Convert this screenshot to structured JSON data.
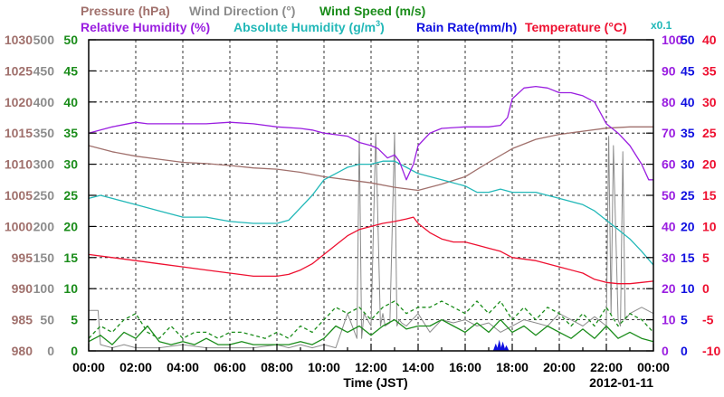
{
  "chart_data": {
    "type": "line",
    "title": "",
    "date": "2012-01-11",
    "xlabel": "Time (JST)",
    "x_ticks": [
      "00:00",
      "02:00",
      "04:00",
      "06:00",
      "08:00",
      "10:00",
      "12:00",
      "14:00",
      "16:00",
      "18:00",
      "20:00",
      "22:00",
      "00:00"
    ],
    "x_range_hours": [
      0,
      24
    ],
    "grid": true,
    "axes": [
      {
        "label": "Pressure (hPa)",
        "color": "#a0706c",
        "side": "left",
        "range": [
          980,
          1030
        ],
        "ticks": [
          "1030",
          "1025",
          "1020",
          "1015",
          "1010",
          "1005",
          "1000",
          "995",
          "990",
          "985",
          "980"
        ]
      },
      {
        "label": "Wind Direction (°)",
        "color": "#8c8c8c",
        "side": "left",
        "range": [
          0,
          500
        ],
        "ticks": [
          "500",
          "450",
          "400",
          "350",
          "300",
          "250",
          "200",
          "150",
          "100",
          "50",
          "0"
        ]
      },
      {
        "label": "Wind Speed (m/s)",
        "color": "#1a8c1a",
        "side": "left",
        "range": [
          0,
          50
        ],
        "ticks": [
          "50",
          "45",
          "40",
          "35",
          "30",
          "25",
          "20",
          "15",
          "10",
          "5",
          "0"
        ]
      },
      {
        "label": "Relative Humidity (%)",
        "color": "#9a1ee0",
        "side": "right",
        "range": [
          0,
          100
        ],
        "ticks": [
          "100",
          "90",
          "80",
          "70",
          "60",
          "50",
          "40",
          "30",
          "20",
          "10",
          "0"
        ]
      },
      {
        "label": "Absolute Humidity (g/m³) x0.1",
        "color": "#22b8b8",
        "side": "right",
        "range": [
          0,
          50
        ],
        "ticks": []
      },
      {
        "label": "Rain Rate(mm/h)",
        "color": "#1010e0",
        "side": "right",
        "range": [
          0,
          50
        ],
        "ticks": [
          "50",
          "45",
          "40",
          "35",
          "30",
          "25",
          "20",
          "15",
          "10",
          "5",
          "0"
        ]
      },
      {
        "label": "Temperature (°C)",
        "color": "#ee1030",
        "side": "right",
        "range": [
          -10,
          40
        ],
        "ticks": [
          "40",
          "35",
          "30",
          "25",
          "20",
          "15",
          "10",
          "5",
          "0",
          "-5",
          "-10"
        ]
      }
    ],
    "legend_row1": {
      "pressure": "Pressure (hPa)",
      "wind_direction": "Wind Direction (°)",
      "wind_speed": "Wind Speed (m/s)"
    },
    "legend_row2": {
      "rh": "Relative Humidity (%)",
      "ah_pre": "Absolute Humidity (g/m",
      "ah_sup": "3",
      "ah_post": ")",
      "rain": "Rain Rate(mm/h)",
      "temp": "Temperature (°C)"
    },
    "scale_note": "x0.1",
    "series": [
      {
        "name": "Pressure",
        "color": "#a0706c",
        "x": [
          0,
          1,
          2,
          3,
          4,
          5,
          6,
          7,
          8,
          9,
          10,
          11,
          12,
          13,
          14,
          15,
          16,
          17,
          18,
          19,
          20,
          21,
          22,
          23,
          24
        ],
        "y": [
          1013,
          1012,
          1011.3,
          1010.8,
          1010.3,
          1010.1,
          1009.8,
          1009.4,
          1009.2,
          1008.7,
          1008,
          1007.5,
          1007,
          1006.3,
          1005.8,
          1006.8,
          1008,
          1010.3,
          1012.5,
          1014,
          1014.8,
          1015.3,
          1015.8,
          1016,
          1016
        ]
      },
      {
        "name": "Relative Humidity",
        "color": "#9a1ee0",
        "x": [
          0,
          0.5,
          1,
          2,
          2.5,
          3,
          4,
          5,
          6,
          7,
          8,
          9,
          9.5,
          10,
          10.5,
          11,
          11.5,
          12,
          12.3,
          12.7,
          13,
          13.2,
          13.5,
          13.8,
          14,
          14.5,
          15,
          16,
          17,
          17.5,
          17.8,
          18,
          18.5,
          19,
          19.5,
          20,
          20.5,
          21,
          21.5,
          22,
          22.5,
          23,
          23.5,
          23.8,
          24
        ],
        "y": [
          70,
          71,
          72,
          73.5,
          73,
          73,
          73,
          73,
          73.5,
          73,
          72,
          71.5,
          71,
          70,
          69.5,
          69,
          67,
          66,
          65,
          62,
          63,
          61,
          55,
          60,
          66,
          70,
          71.5,
          72,
          72,
          72.5,
          75,
          81,
          84.5,
          85,
          84.5,
          83,
          83,
          82,
          80,
          73,
          70,
          66,
          60,
          55,
          55
        ]
      },
      {
        "name": "Absolute Humidity",
        "color": "#22b8b8",
        "x": [
          0,
          0.5,
          1,
          2,
          3,
          4,
          5,
          6,
          7,
          8,
          8.5,
          9,
          9.5,
          10,
          10.5,
          11,
          11.5,
          12,
          12.5,
          13,
          13.5,
          14,
          15,
          16,
          16.5,
          17,
          17.5,
          18,
          19,
          20,
          21,
          21.5,
          22,
          22.5,
          23,
          23.5,
          24
        ],
        "y": [
          24.5,
          25,
          24.5,
          23.5,
          22.5,
          21.5,
          21.5,
          20.8,
          20.5,
          20.5,
          21,
          23,
          25,
          27.5,
          28.5,
          29.5,
          30,
          30,
          30.5,
          30.5,
          29.5,
          28.5,
          27.5,
          26.5,
          25.5,
          25.5,
          26,
          25.5,
          25.5,
          24.5,
          23.5,
          22.5,
          21,
          19.5,
          18,
          16,
          13.8
        ]
      },
      {
        "name": "Temperature",
        "color": "#ee1030",
        "x": [
          0,
          1,
          2,
          3,
          4,
          5,
          6,
          7,
          8,
          8.5,
          9,
          9.5,
          10,
          10.5,
          11,
          11.5,
          12,
          12.5,
          13,
          13.5,
          13.8,
          14,
          14.5,
          15,
          15.5,
          16,
          16.5,
          17,
          17.5,
          18,
          19,
          20,
          21,
          21.5,
          22,
          22.5,
          23,
          23.5,
          24
        ],
        "y": [
          5.5,
          5,
          4.5,
          4,
          3.5,
          3,
          2.5,
          2,
          2,
          2.3,
          3,
          4,
          5.5,
          7,
          8.5,
          9.5,
          10,
          10.5,
          10.8,
          11.2,
          11.5,
          10.5,
          9,
          8,
          7.5,
          7.5,
          7,
          6.5,
          6,
          5,
          4.5,
          3.5,
          2.5,
          1.5,
          1,
          0.8,
          0.8,
          1,
          1.2
        ]
      },
      {
        "name": "Wind Speed",
        "color": "#1a8c1a",
        "x": [
          0,
          0.5,
          1,
          1.5,
          2,
          2.5,
          3,
          3.5,
          4,
          4.5,
          5,
          5.5,
          6,
          6.5,
          7,
          7.5,
          8,
          8.5,
          9,
          9.5,
          10,
          10.5,
          11,
          11.5,
          12,
          12.5,
          13,
          13.5,
          14,
          14.5,
          15,
          15.5,
          16,
          16.5,
          17,
          17.5,
          18,
          18.5,
          19,
          19.5,
          20,
          20.5,
          21,
          21.5,
          22,
          22.5,
          23,
          23.5,
          24
        ],
        "y": [
          1.5,
          2.5,
          1,
          3,
          2,
          4,
          1.5,
          1,
          1.5,
          1,
          2,
          1,
          1,
          1.5,
          1,
          1,
          1,
          1,
          1.5,
          1,
          2,
          4,
          3,
          4,
          2.5,
          4,
          5,
          3.5,
          4,
          4,
          5,
          4,
          3,
          4.5,
          3,
          5,
          3,
          4,
          2.5,
          4,
          3,
          2,
          3.5,
          2,
          4,
          2,
          3,
          2,
          1.5
        ]
      },
      {
        "name": "Wind Speed (gust)",
        "color": "#1a8c1a",
        "dashed": true,
        "x": [
          0,
          0.5,
          1,
          1.5,
          2,
          2.5,
          3,
          3.5,
          4,
          4.5,
          5,
          5.5,
          6,
          6.5,
          7,
          7.5,
          8,
          8.5,
          9,
          9.5,
          10,
          10.5,
          11,
          11.5,
          12,
          12.5,
          13,
          13.5,
          14,
          14.5,
          15,
          15.5,
          16,
          16.5,
          17,
          17.5,
          18,
          18.5,
          19,
          19.5,
          20,
          20.5,
          21,
          21.5,
          22,
          22.5,
          23,
          23.5,
          24
        ],
        "y": [
          2,
          4,
          3,
          5,
          6,
          3,
          2,
          4,
          2,
          3,
          3,
          2,
          3,
          3,
          2.5,
          2,
          3,
          2,
          4,
          3,
          5,
          7,
          6,
          7,
          5,
          7,
          8,
          6,
          7,
          7,
          8,
          7,
          6,
          8,
          6,
          8,
          5,
          7,
          5,
          7,
          6,
          4,
          6,
          4,
          7,
          4,
          6,
          5,
          3
        ]
      },
      {
        "name": "Wind Direction",
        "color": "#8c8c8c",
        "x": [
          0,
          0.4,
          0.5,
          1,
          1.5,
          2,
          3,
          4,
          5,
          6,
          7,
          8,
          8.5,
          9,
          9.5,
          10,
          10.5,
          11,
          11.4,
          11.5,
          11.6,
          11.7,
          12,
          12.2,
          12.4,
          12.5,
          12.6,
          12.8,
          13,
          13.1,
          13.2,
          13.3,
          13.5,
          14,
          14.5,
          15,
          15.5,
          16,
          16.5,
          17,
          17.5,
          18,
          18.5,
          19,
          19.5,
          20,
          20.5,
          21,
          21.5,
          22,
          22.1,
          22.2,
          22.3,
          22.5,
          22.6,
          22.7,
          22.8,
          23,
          23.5,
          24
        ],
        "y": [
          65,
          65,
          10,
          5,
          10,
          5,
          5,
          10,
          5,
          5,
          5,
          10,
          5,
          10,
          5,
          10,
          5,
          60,
          20,
          350,
          20,
          60,
          40,
          350,
          40,
          60,
          40,
          45,
          350,
          40,
          50,
          45,
          40,
          60,
          30,
          50,
          45,
          50,
          40,
          45,
          30,
          40,
          50,
          45,
          40,
          60,
          50,
          40,
          55,
          40,
          345,
          60,
          330,
          50,
          40,
          320,
          50,
          60,
          70,
          60
        ]
      },
      {
        "name": "Rain Rate",
        "color": "#1010e0",
        "x": [
          17.3,
          17.45,
          17.6,
          17.75
        ],
        "y": [
          1.2,
          1.8,
          1.5,
          0.9
        ]
      }
    ]
  }
}
